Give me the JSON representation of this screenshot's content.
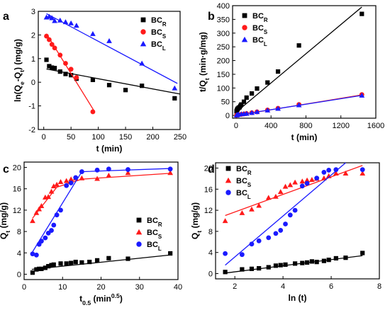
{
  "colors": {
    "BC_R": "#000000",
    "BC_S": "#ff1a1a",
    "BC_L": "#1a1aff"
  },
  "chart_data": [
    {
      "panel_label": "a",
      "type": "scatter",
      "xlabel": "t (min)",
      "ylabel": "ln(Q_e-Q_t) (mg/g)",
      "xlim": [
        -10,
        250
      ],
      "ylim": [
        -2,
        3
      ],
      "xticks": [
        "0",
        "50",
        "100",
        "150",
        "200",
        "250"
      ],
      "yticks": [
        "-2",
        "-1",
        "0",
        "1",
        "2",
        "3"
      ],
      "legend_position": "top-right",
      "series": [
        {
          "name": "BC_R",
          "marker": "square",
          "color_key": "BC_R",
          "x": [
            5,
            10,
            15,
            20,
            30,
            40,
            50,
            60,
            90,
            120,
            150,
            180,
            240
          ],
          "y": [
            0.95,
            0.68,
            0.62,
            0.6,
            0.45,
            0.35,
            0.3,
            0.15,
            0.1,
            -0.12,
            -0.33,
            -0.15,
            -0.68
          ],
          "fit": [
            [
              5,
              0.56
            ],
            [
              250,
              -0.5
            ]
          ]
        },
        {
          "name": "BC_S",
          "marker": "circle",
          "color_key": "BC_S",
          "x": [
            5,
            10,
            15,
            20,
            30,
            40,
            50,
            60,
            90
          ],
          "y": [
            1.95,
            1.8,
            1.6,
            1.45,
            1.15,
            0.8,
            0.55,
            0.2,
            -1.25
          ],
          "fit": [
            [
              5,
              2.05
            ],
            [
              92,
              -1.2
            ]
          ]
        },
        {
          "name": "BC_L",
          "marker": "triangle",
          "color_key": "BC_L",
          "x": [
            5,
            10,
            15,
            20,
            30,
            40,
            50,
            60,
            90,
            120,
            180,
            240
          ],
          "y": [
            2.75,
            2.78,
            2.72,
            2.6,
            2.62,
            2.55,
            2.5,
            2.4,
            2.05,
            1.75,
            0.8,
            -0.25
          ],
          "fit": [
            [
              5,
              2.9
            ],
            [
              245,
              -0.05
            ]
          ]
        }
      ]
    },
    {
      "panel_label": "b",
      "type": "scatter",
      "xlabel": "t (min)",
      "ylabel": "t/Q_t (min·g/mg)",
      "xlim": [
        -40,
        1600
      ],
      "ylim": [
        -10,
        400
      ],
      "xticks": [
        "0",
        "400",
        "800",
        "1200",
        "1600"
      ],
      "yticks": [
        "0",
        "50",
        "100",
        "150",
        "200",
        "250",
        "300",
        "350",
        "400"
      ],
      "legend_position": "top-left",
      "series": [
        {
          "name": "BC_R",
          "marker": "square",
          "color_key": "BC_R",
          "x": [
            5,
            10,
            15,
            20,
            30,
            40,
            50,
            60,
            90,
            120,
            180,
            240,
            360,
            480,
            720,
            1440
          ],
          "y": [
            15,
            20,
            22,
            25,
            28,
            30,
            35,
            40,
            50,
            65,
            80,
            98,
            120,
            160,
            255,
            370
          ],
          "fit": [
            [
              0,
              12
            ],
            [
              1440,
              395
            ]
          ]
        },
        {
          "name": "BC_S",
          "marker": "circle",
          "color_key": "BC_S",
          "x": [
            5,
            10,
            20,
            30,
            60,
            90,
            120,
            180,
            240,
            360,
            480,
            720,
            1440
          ],
          "y": [
            0.5,
            1,
            2,
            2.5,
            4,
            5.5,
            7,
            10,
            13,
            20,
            26,
            40,
            76
          ],
          "fit": [
            [
              0,
              0
            ],
            [
              1440,
              75
            ]
          ]
        },
        {
          "name": "BC_L",
          "marker": "triangle",
          "color_key": "BC_L",
          "x": [
            5,
            10,
            20,
            30,
            60,
            90,
            120,
            180,
            240,
            360,
            480,
            720,
            1440
          ],
          "y": [
            1,
            2,
            3,
            4,
            5,
            6,
            7,
            10,
            13,
            19,
            25,
            38,
            73
          ],
          "fit": [
            [
              0,
              1
            ],
            [
              1440,
              73
            ]
          ]
        }
      ]
    },
    {
      "panel_label": "c",
      "type": "scatter",
      "xlabel": "t_0.5 (min^0.5)",
      "ylabel": "Q_t (mg/g)",
      "xlim": [
        0,
        40
      ],
      "ylim": [
        -1,
        21
      ],
      "xticks": [
        "0",
        "10",
        "20",
        "30",
        "40"
      ],
      "yticks": [
        "0",
        "4",
        "8",
        "12",
        "16",
        "20"
      ],
      "legend_position": "middle-right",
      "series": [
        {
          "name": "BC_R",
          "marker": "square",
          "color_key": "BC_R",
          "x": [
            2.2,
            3.2,
            3.9,
            4.5,
            5.5,
            6.3,
            7.1,
            7.7,
            9.5,
            11,
            12.2,
            13.4,
            15,
            17,
            19,
            22,
            27,
            38
          ],
          "y": [
            0.3,
            0.9,
            1.0,
            1.0,
            1.2,
            1.5,
            1.7,
            1.8,
            2.0,
            2.0,
            2.1,
            2.3,
            2.2,
            2.3,
            2.6,
            3.0,
            2.9,
            3.9
          ],
          "fit": [
            [
              2,
              0.9
            ],
            [
              38,
              3.6
            ]
          ]
        },
        {
          "name": "BC_S",
          "marker": "triangle",
          "color_key": "BC_S",
          "x": [
            2.2,
            3.2,
            3.9,
            4.5,
            5.5,
            6.3,
            7.1,
            7.7,
            8.5,
            9.5,
            11,
            12.2,
            13.4,
            15,
            19,
            22,
            27,
            38
          ],
          "y": [
            10,
            11.5,
            12.2,
            12.8,
            14.4,
            14.5,
            15.5,
            16.5,
            16.8,
            17.3,
            17.5,
            17.8,
            18,
            18,
            17.9,
            18.5,
            19,
            19
          ],
          "fit": [
            [
              2.2,
              10.5
            ],
            [
              8.5,
              16.3
            ],
            [
              15,
              17.8
            ],
            [
              38,
              18.9
            ]
          ]
        },
        {
          "name": "BC_L",
          "marker": "circle",
          "color_key": "BC_L",
          "x": [
            2.2,
            3.2,
            3.9,
            4.5,
            5.5,
            6.3,
            7.1,
            7.7,
            8.5,
            9.5,
            11,
            12.2,
            13.4,
            15,
            19,
            22,
            27,
            38
          ],
          "y": [
            3.8,
            3.6,
            5.6,
            6.2,
            6.8,
            7.7,
            8.2,
            9.2,
            11.1,
            12,
            16.6,
            17.1,
            18.1,
            19.2,
            19.5,
            19.7,
            19.6,
            19.7
          ],
          "fit": [
            [
              2.2,
              4.2
            ],
            [
              15,
              19.2
            ],
            [
              38,
              19.8
            ]
          ]
        }
      ]
    },
    {
      "panel_label": "d",
      "type": "scatter",
      "xlabel": "ln (t)",
      "ylabel": "Q_t (mg/g)",
      "xlim": [
        1.2,
        8
      ],
      "ylim": [
        -1,
        21
      ],
      "xticks": [
        "2",
        "4",
        "6",
        "8"
      ],
      "yticks": [
        "0",
        "4",
        "8",
        "12",
        "16",
        "20"
      ],
      "legend_position": "top-left",
      "series": [
        {
          "name": "BC_R",
          "marker": "square",
          "color_key": "BC_R",
          "x": [
            1.6,
            2.3,
            2.7,
            3.0,
            3.4,
            3.7,
            3.9,
            4.1,
            4.5,
            4.8,
            5.0,
            5.2,
            5.4,
            5.7,
            5.9,
            6.2,
            6.6,
            7.3
          ],
          "y": [
            0.3,
            0.8,
            0.9,
            1.0,
            1.2,
            1.5,
            1.6,
            1.7,
            1.9,
            2.0,
            2.1,
            2.3,
            2.2,
            2.4,
            2.6,
            2.9,
            3.0,
            3.9
          ],
          "fit": [
            [
              1.6,
              0.1
            ],
            [
              7.3,
              3.4
            ]
          ]
        },
        {
          "name": "BC_S",
          "marker": "triangle",
          "color_key": "BC_S",
          "x": [
            1.6,
            2.3,
            2.7,
            3.0,
            3.4,
            3.7,
            3.9,
            4.1,
            4.3,
            4.5,
            4.8,
            5.0,
            5.2,
            5.4,
            5.7,
            5.9,
            6.2,
            6.6,
            7.3
          ],
          "y": [
            10,
            11.5,
            12.2,
            12.9,
            14.4,
            14.6,
            15.5,
            16.5,
            16.8,
            17.3,
            17.5,
            17.7,
            17.8,
            18,
            18.1,
            18.5,
            19,
            19,
            19
          ],
          "fit": [
            [
              1.6,
              11
            ],
            [
              7.3,
              20.5
            ]
          ]
        },
        {
          "name": "BC_L",
          "marker": "circle",
          "color_key": "BC_L",
          "x": [
            1.6,
            2.3,
            2.7,
            3.0,
            3.4,
            3.7,
            3.9,
            4.1,
            4.3,
            4.5,
            4.8,
            5.0,
            5.4,
            5.7,
            5.9,
            6.2,
            7.3
          ],
          "y": [
            3.8,
            3.6,
            5.6,
            6.2,
            6.8,
            7.6,
            8.2,
            9.4,
            11.1,
            12,
            16.6,
            17.1,
            18.1,
            19.2,
            19.6,
            19.7,
            19.7
          ],
          "fit": [
            [
              1.6,
              1.6
            ],
            [
              6.6,
              21
            ]
          ]
        }
      ]
    }
  ]
}
